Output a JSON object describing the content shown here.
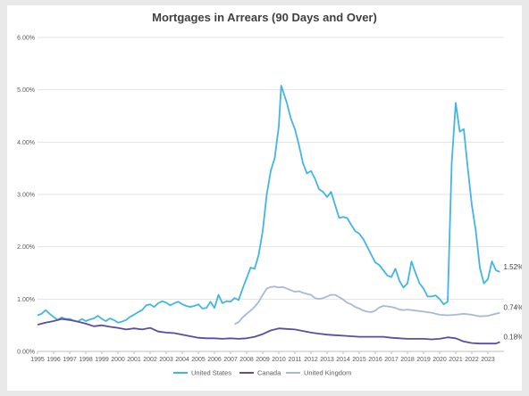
{
  "chart_data": {
    "type": "line",
    "title": "Mortgages in Arrears (90 Days and Over)",
    "xlabel": "",
    "ylabel": "",
    "ylim": [
      0,
      6
    ],
    "xlim": [
      1995,
      2024
    ],
    "y_ticks": [
      "0.00%",
      "1.00%",
      "2.00%",
      "3.00%",
      "4.00%",
      "5.00%",
      "6.00%"
    ],
    "x_ticks": [
      "1995",
      "1996",
      "1997",
      "1998",
      "1999",
      "2000",
      "2001",
      "2002",
      "2003",
      "2004",
      "2005",
      "2006",
      "2007",
      "2008",
      "2009",
      "2010",
      "2011",
      "2012",
      "2013",
      "2014",
      "2015",
      "2016",
      "2017",
      "2018",
      "2019",
      "2020",
      "2021",
      "2022",
      "2023"
    ],
    "grid": true,
    "legend_position": "bottom",
    "series": [
      {
        "name": "United States",
        "color": "#41b6e6",
        "end_label": "1.52%",
        "points": [
          [
            1995.0,
            0.69
          ],
          [
            1995.25,
            0.72
          ],
          [
            1995.5,
            0.79
          ],
          [
            1995.75,
            0.72
          ],
          [
            1996.0,
            0.66
          ],
          [
            1996.25,
            0.6
          ],
          [
            1996.5,
            0.65
          ],
          [
            1996.75,
            0.62
          ],
          [
            1997.0,
            0.62
          ],
          [
            1997.25,
            0.59
          ],
          [
            1997.5,
            0.57
          ],
          [
            1997.75,
            0.62
          ],
          [
            1998.0,
            0.58
          ],
          [
            1998.25,
            0.61
          ],
          [
            1998.5,
            0.63
          ],
          [
            1998.75,
            0.68
          ],
          [
            1999.0,
            0.62
          ],
          [
            1999.25,
            0.58
          ],
          [
            1999.5,
            0.63
          ],
          [
            1999.75,
            0.6
          ],
          [
            2000.0,
            0.55
          ],
          [
            2000.25,
            0.57
          ],
          [
            2000.5,
            0.6
          ],
          [
            2000.75,
            0.66
          ],
          [
            2001.0,
            0.7
          ],
          [
            2001.25,
            0.75
          ],
          [
            2001.5,
            0.79
          ],
          [
            2001.75,
            0.88
          ],
          [
            2002.0,
            0.9
          ],
          [
            2002.25,
            0.85
          ],
          [
            2002.5,
            0.92
          ],
          [
            2002.75,
            0.96
          ],
          [
            2003.0,
            0.93
          ],
          [
            2003.25,
            0.88
          ],
          [
            2003.5,
            0.92
          ],
          [
            2003.75,
            0.95
          ],
          [
            2004.0,
            0.9
          ],
          [
            2004.25,
            0.87
          ],
          [
            2004.5,
            0.85
          ],
          [
            2004.75,
            0.87
          ],
          [
            2005.0,
            0.9
          ],
          [
            2005.25,
            0.82
          ],
          [
            2005.5,
            0.83
          ],
          [
            2005.75,
            0.95
          ],
          [
            2006.0,
            0.83
          ],
          [
            2006.25,
            1.08
          ],
          [
            2006.5,
            0.92
          ],
          [
            2006.75,
            0.96
          ],
          [
            2007.0,
            0.95
          ],
          [
            2007.25,
            1.02
          ],
          [
            2007.5,
            0.98
          ],
          [
            2007.75,
            1.2
          ],
          [
            2008.0,
            1.4
          ],
          [
            2008.25,
            1.6
          ],
          [
            2008.5,
            1.58
          ],
          [
            2008.75,
            1.85
          ],
          [
            2009.0,
            2.3
          ],
          [
            2009.25,
            3.0
          ],
          [
            2009.5,
            3.45
          ],
          [
            2009.75,
            3.7
          ],
          [
            2010.0,
            4.3
          ],
          [
            2010.15,
            5.08
          ],
          [
            2010.5,
            4.75
          ],
          [
            2010.75,
            4.45
          ],
          [
            2011.0,
            4.25
          ],
          [
            2011.25,
            3.95
          ],
          [
            2011.5,
            3.6
          ],
          [
            2011.75,
            3.4
          ],
          [
            2012.0,
            3.45
          ],
          [
            2012.25,
            3.3
          ],
          [
            2012.5,
            3.1
          ],
          [
            2012.75,
            3.05
          ],
          [
            2013.0,
            2.95
          ],
          [
            2013.25,
            3.05
          ],
          [
            2013.5,
            2.8
          ],
          [
            2013.75,
            2.55
          ],
          [
            2014.0,
            2.57
          ],
          [
            2014.25,
            2.55
          ],
          [
            2014.5,
            2.42
          ],
          [
            2014.75,
            2.3
          ],
          [
            2015.0,
            2.25
          ],
          [
            2015.25,
            2.15
          ],
          [
            2015.5,
            2.0
          ],
          [
            2015.75,
            1.85
          ],
          [
            2016.0,
            1.7
          ],
          [
            2016.25,
            1.65
          ],
          [
            2016.5,
            1.55
          ],
          [
            2016.75,
            1.45
          ],
          [
            2017.0,
            1.42
          ],
          [
            2017.25,
            1.58
          ],
          [
            2017.5,
            1.35
          ],
          [
            2017.75,
            1.22
          ],
          [
            2018.0,
            1.3
          ],
          [
            2018.25,
            1.72
          ],
          [
            2018.5,
            1.5
          ],
          [
            2018.75,
            1.3
          ],
          [
            2019.0,
            1.2
          ],
          [
            2019.25,
            1.05
          ],
          [
            2019.5,
            1.05
          ],
          [
            2019.75,
            1.07
          ],
          [
            2020.0,
            1.0
          ],
          [
            2020.25,
            0.9
          ],
          [
            2020.5,
            0.95
          ],
          [
            2020.75,
            3.6
          ],
          [
            2021.0,
            4.75
          ],
          [
            2021.25,
            4.2
          ],
          [
            2021.5,
            4.25
          ],
          [
            2021.75,
            3.5
          ],
          [
            2022.0,
            2.8
          ],
          [
            2022.25,
            2.3
          ],
          [
            2022.5,
            1.6
          ],
          [
            2022.75,
            1.3
          ],
          [
            2023.0,
            1.38
          ],
          [
            2023.25,
            1.72
          ],
          [
            2023.5,
            1.55
          ],
          [
            2023.75,
            1.52
          ]
        ]
      },
      {
        "name": "Canada",
        "color": "#5a4e9e",
        "end_label": "0.18%",
        "points": [
          [
            1995.0,
            0.51
          ],
          [
            1995.5,
            0.55
          ],
          [
            1996.0,
            0.58
          ],
          [
            1996.5,
            0.62
          ],
          [
            1997.0,
            0.6
          ],
          [
            1997.5,
            0.57
          ],
          [
            1998.0,
            0.53
          ],
          [
            1998.5,
            0.48
          ],
          [
            1999.0,
            0.5
          ],
          [
            1999.5,
            0.47
          ],
          [
            2000.0,
            0.45
          ],
          [
            2000.5,
            0.42
          ],
          [
            2001.0,
            0.44
          ],
          [
            2001.5,
            0.42
          ],
          [
            2002.0,
            0.45
          ],
          [
            2002.5,
            0.38
          ],
          [
            2003.0,
            0.36
          ],
          [
            2003.5,
            0.35
          ],
          [
            2004.0,
            0.32
          ],
          [
            2004.5,
            0.29
          ],
          [
            2005.0,
            0.26
          ],
          [
            2005.5,
            0.25
          ],
          [
            2006.0,
            0.25
          ],
          [
            2006.5,
            0.24
          ],
          [
            2007.0,
            0.25
          ],
          [
            2007.5,
            0.24
          ],
          [
            2008.0,
            0.25
          ],
          [
            2008.5,
            0.28
          ],
          [
            2009.0,
            0.33
          ],
          [
            2009.5,
            0.4
          ],
          [
            2010.0,
            0.44
          ],
          [
            2010.5,
            0.43
          ],
          [
            2011.0,
            0.42
          ],
          [
            2011.5,
            0.39
          ],
          [
            2012.0,
            0.36
          ],
          [
            2012.5,
            0.34
          ],
          [
            2013.0,
            0.32
          ],
          [
            2013.5,
            0.31
          ],
          [
            2014.0,
            0.3
          ],
          [
            2014.5,
            0.29
          ],
          [
            2015.0,
            0.28
          ],
          [
            2015.5,
            0.28
          ],
          [
            2016.0,
            0.28
          ],
          [
            2016.5,
            0.28
          ],
          [
            2017.0,
            0.26
          ],
          [
            2017.5,
            0.25
          ],
          [
            2018.0,
            0.24
          ],
          [
            2018.5,
            0.24
          ],
          [
            2019.0,
            0.24
          ],
          [
            2019.5,
            0.23
          ],
          [
            2020.0,
            0.24
          ],
          [
            2020.5,
            0.27
          ],
          [
            2021.0,
            0.25
          ],
          [
            2021.5,
            0.19
          ],
          [
            2022.0,
            0.16
          ],
          [
            2022.5,
            0.15
          ],
          [
            2023.0,
            0.15
          ],
          [
            2023.5,
            0.15
          ],
          [
            2023.75,
            0.18
          ]
        ]
      },
      {
        "name": "United Kingdom",
        "color": "#a9b8d8",
        "end_label": "0.74%",
        "points": [
          [
            2007.25,
            0.52
          ],
          [
            2007.5,
            0.56
          ],
          [
            2007.75,
            0.65
          ],
          [
            2008.0,
            0.72
          ],
          [
            2008.25,
            0.78
          ],
          [
            2008.5,
            0.85
          ],
          [
            2008.75,
            0.95
          ],
          [
            2009.0,
            1.08
          ],
          [
            2009.25,
            1.2
          ],
          [
            2009.5,
            1.23
          ],
          [
            2009.75,
            1.24
          ],
          [
            2010.0,
            1.22
          ],
          [
            2010.25,
            1.23
          ],
          [
            2010.5,
            1.2
          ],
          [
            2010.75,
            1.17
          ],
          [
            2011.0,
            1.14
          ],
          [
            2011.25,
            1.15
          ],
          [
            2011.5,
            1.12
          ],
          [
            2011.75,
            1.1
          ],
          [
            2012.0,
            1.08
          ],
          [
            2012.25,
            1.02
          ],
          [
            2012.5,
            1.0
          ],
          [
            2012.75,
            1.02
          ],
          [
            2013.0,
            1.05
          ],
          [
            2013.25,
            1.08
          ],
          [
            2013.5,
            1.08
          ],
          [
            2013.75,
            1.04
          ],
          [
            2014.0,
            0.99
          ],
          [
            2014.25,
            0.93
          ],
          [
            2014.5,
            0.9
          ],
          [
            2014.75,
            0.85
          ],
          [
            2015.0,
            0.82
          ],
          [
            2015.25,
            0.78
          ],
          [
            2015.5,
            0.76
          ],
          [
            2015.75,
            0.75
          ],
          [
            2016.0,
            0.78
          ],
          [
            2016.25,
            0.84
          ],
          [
            2016.5,
            0.87
          ],
          [
            2016.75,
            0.86
          ],
          [
            2017.0,
            0.85
          ],
          [
            2017.25,
            0.83
          ],
          [
            2017.5,
            0.8
          ],
          [
            2017.75,
            0.79
          ],
          [
            2018.0,
            0.8
          ],
          [
            2018.5,
            0.78
          ],
          [
            2019.0,
            0.76
          ],
          [
            2019.5,
            0.74
          ],
          [
            2020.0,
            0.7
          ],
          [
            2020.5,
            0.69
          ],
          [
            2021.0,
            0.7
          ],
          [
            2021.5,
            0.72
          ],
          [
            2022.0,
            0.7
          ],
          [
            2022.5,
            0.67
          ],
          [
            2023.0,
            0.68
          ],
          [
            2023.5,
            0.72
          ],
          [
            2023.75,
            0.74
          ]
        ]
      }
    ]
  }
}
